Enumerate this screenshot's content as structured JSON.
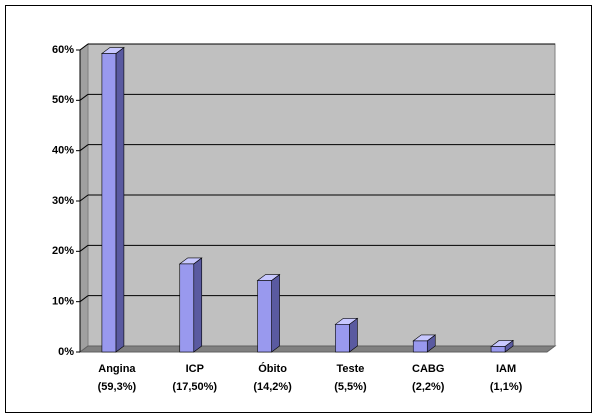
{
  "chart_data": {
    "type": "bar3d",
    "categories": [
      "Angina",
      "ICP",
      "Óbito",
      "Teste",
      "CABG",
      "IAM"
    ],
    "values": [
      59.3,
      17.5,
      14.2,
      5.5,
      2.2,
      1.1
    ],
    "value_labels": [
      "(59,3%)",
      "(17,50%)",
      "(14,2%)",
      "(5,5%)",
      "(2,2%)",
      "(1,1%)"
    ],
    "color": "#9999ee",
    "ylim": [
      0,
      60
    ],
    "yticks": [
      {
        "value": 0,
        "label": "0%"
      },
      {
        "value": 10,
        "label": "10%"
      },
      {
        "value": 20,
        "label": "20%"
      },
      {
        "value": 30,
        "label": "30%"
      },
      {
        "value": 40,
        "label": "40%"
      },
      {
        "value": 50,
        "label": "50%"
      },
      {
        "value": 60,
        "label": "60%"
      }
    ],
    "grid": true
  }
}
